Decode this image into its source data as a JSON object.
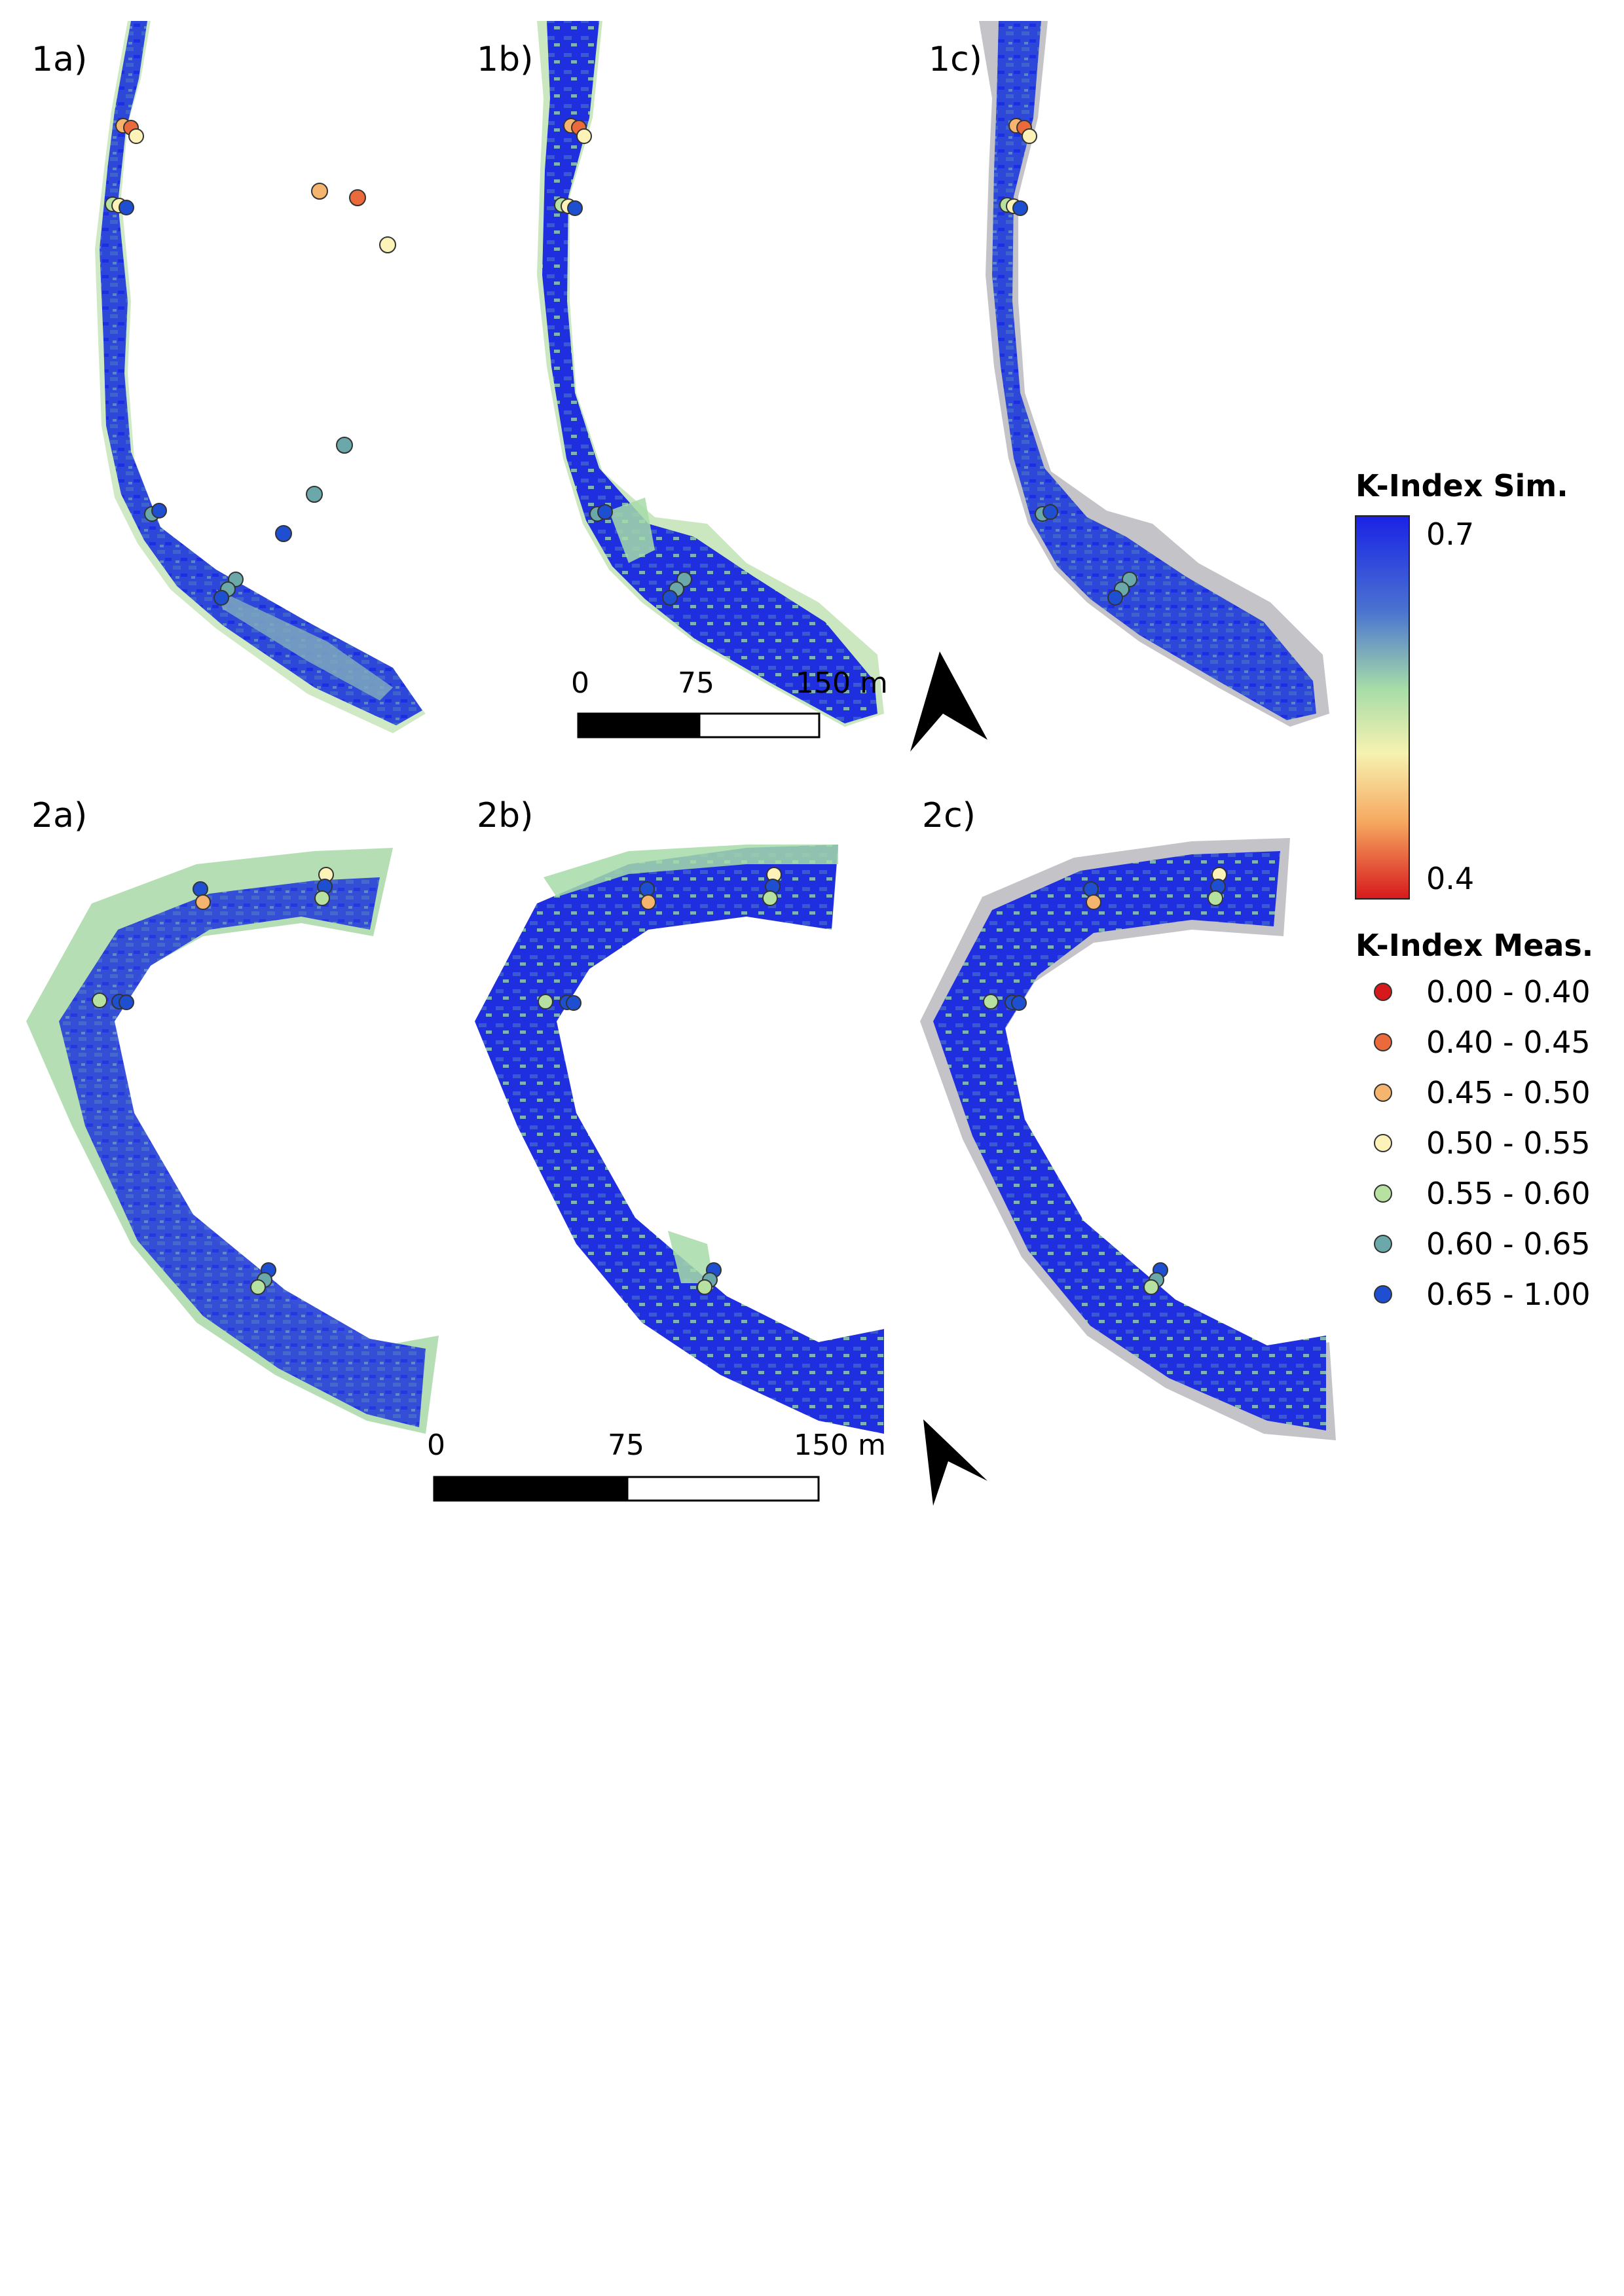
{
  "panels": {
    "p1a": "1a)",
    "p1b": "1b)",
    "p1c": "1c)",
    "p2a": "2a)",
    "p2b": "2b)",
    "p2c": "2c)"
  },
  "scalebar_top": {
    "t0": "0",
    "t1": "75",
    "t2": "150 m"
  },
  "scalebar_bottom": {
    "t0": "0",
    "t1": "75",
    "t2": "150 m"
  },
  "legend": {
    "sim_title": "K-Index Sim.",
    "sim_max": "0.7",
    "sim_min": "0.4",
    "meas_title": "K-Index Meas.",
    "classes": [
      {
        "label": "0.00 - 0.40",
        "color": "#d7191c"
      },
      {
        "label": "0.40 - 0.45",
        "color": "#ea6a3b"
      },
      {
        "label": "0.45 - 0.50",
        "color": "#f6b56e"
      },
      {
        "label": "0.50 - 0.55",
        "color": "#fdf2b8"
      },
      {
        "label": "0.55 - 0.60",
        "color": "#b7e1a1"
      },
      {
        "label": "0.60 - 0.65",
        "color": "#6aa8aa"
      },
      {
        "label": "0.65 - 1.00",
        "color": "#1f4fd1"
      }
    ]
  },
  "colors": {
    "sim_high": "#1a2ee0",
    "sim_mid": "#a6dca8",
    "sim_low": "#d7191c",
    "mask_gray": "#c4c4c8",
    "arrow": "#000000"
  }
}
